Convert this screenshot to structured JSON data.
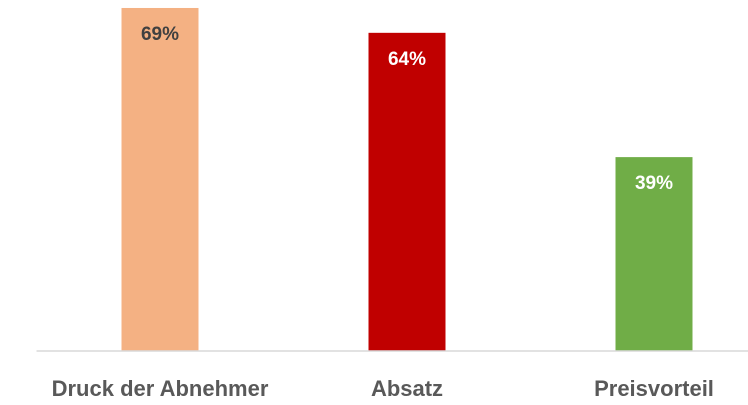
{
  "chart_data": {
    "type": "bar",
    "categories": [
      "Druck der Abnehmer",
      "Absatz",
      "Preisvorteil"
    ],
    "values": [
      69,
      64,
      39
    ],
    "value_labels": [
      "69%",
      "64%",
      "39%"
    ],
    "colors": [
      "#f4b183",
      "#c00000",
      "#70ad47"
    ],
    "value_label_colors": [
      "#404040",
      "#ffffff",
      "#ffffff"
    ],
    "ylim": [
      0,
      70
    ]
  }
}
